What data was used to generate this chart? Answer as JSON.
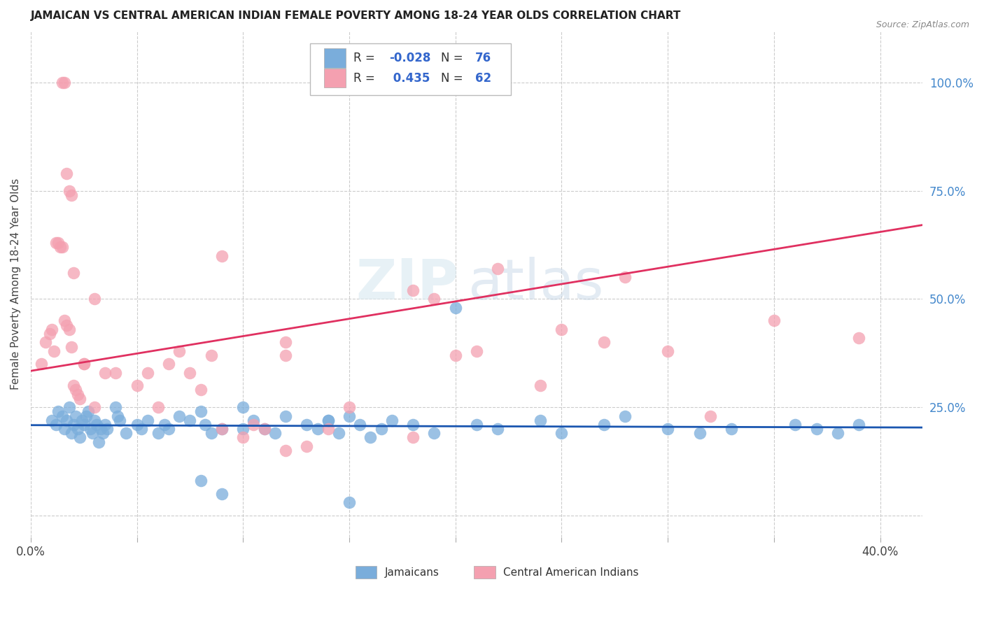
{
  "title": "JAMAICAN VS CENTRAL AMERICAN INDIAN FEMALE POVERTY AMONG 18-24 YEAR OLDS CORRELATION CHART",
  "source": "Source: ZipAtlas.com",
  "ylabel": "Female Poverty Among 18-24 Year Olds",
  "xlim": [
    0.0,
    0.42
  ],
  "ylim": [
    -0.05,
    1.12
  ],
  "xticks": [
    0.0,
    0.05,
    0.1,
    0.15,
    0.2,
    0.25,
    0.3,
    0.35,
    0.4
  ],
  "yticks_right": [
    0.0,
    0.25,
    0.5,
    0.75,
    1.0
  ],
  "yticklabels_right": [
    "",
    "25.0%",
    "50.0%",
    "75.0%",
    "100.0%"
  ],
  "grid_color": "#cccccc",
  "background_color": "#ffffff",
  "blue_color": "#7aaddb",
  "pink_color": "#f4a0b0",
  "blue_line_color": "#1a56b0",
  "pink_line_color": "#e03060",
  "blue_R": -0.028,
  "pink_R": 0.435,
  "blue_N": 76,
  "pink_N": 62,
  "watermark_zip": "ZIP",
  "watermark_atlas": "atlas",
  "blue_x": [
    0.01,
    0.012,
    0.013,
    0.015,
    0.016,
    0.017,
    0.018,
    0.019,
    0.02,
    0.021,
    0.022,
    0.023,
    0.024,
    0.025,
    0.026,
    0.027,
    0.028,
    0.029,
    0.03,
    0.031,
    0.032,
    0.033,
    0.034,
    0.035,
    0.036,
    0.04,
    0.041,
    0.042,
    0.045,
    0.05,
    0.052,
    0.055,
    0.06,
    0.063,
    0.065,
    0.07,
    0.075,
    0.08,
    0.082,
    0.085,
    0.09,
    0.1,
    0.105,
    0.11,
    0.115,
    0.12,
    0.13,
    0.135,
    0.14,
    0.145,
    0.15,
    0.155,
    0.16,
    0.165,
    0.17,
    0.18,
    0.19,
    0.2,
    0.22,
    0.24,
    0.25,
    0.27,
    0.28,
    0.3,
    0.315,
    0.33,
    0.36,
    0.37,
    0.38,
    0.39,
    0.1,
    0.21,
    0.14,
    0.08,
    0.09,
    0.15
  ],
  "blue_y": [
    0.22,
    0.21,
    0.24,
    0.23,
    0.2,
    0.22,
    0.25,
    0.19,
    0.21,
    0.23,
    0.2,
    0.18,
    0.22,
    0.21,
    0.23,
    0.24,
    0.2,
    0.19,
    0.22,
    0.21,
    0.17,
    0.2,
    0.19,
    0.21,
    0.2,
    0.25,
    0.23,
    0.22,
    0.19,
    0.21,
    0.2,
    0.22,
    0.19,
    0.21,
    0.2,
    0.23,
    0.22,
    0.24,
    0.21,
    0.19,
    0.2,
    0.25,
    0.22,
    0.2,
    0.19,
    0.23,
    0.21,
    0.2,
    0.22,
    0.19,
    0.23,
    0.21,
    0.18,
    0.2,
    0.22,
    0.21,
    0.19,
    0.48,
    0.2,
    0.22,
    0.19,
    0.21,
    0.23,
    0.2,
    0.19,
    0.2,
    0.21,
    0.2,
    0.19,
    0.21,
    0.2,
    0.21,
    0.22,
    0.08,
    0.05,
    0.03
  ],
  "pink_x": [
    0.005,
    0.007,
    0.009,
    0.01,
    0.011,
    0.012,
    0.013,
    0.014,
    0.015,
    0.016,
    0.017,
    0.018,
    0.019,
    0.02,
    0.021,
    0.022,
    0.023,
    0.025,
    0.03,
    0.035,
    0.04,
    0.05,
    0.055,
    0.06,
    0.065,
    0.07,
    0.075,
    0.08,
    0.085,
    0.09,
    0.1,
    0.105,
    0.11,
    0.12,
    0.13,
    0.14,
    0.15,
    0.18,
    0.19,
    0.2,
    0.21,
    0.22,
    0.24,
    0.25,
    0.27,
    0.28,
    0.3,
    0.32,
    0.35,
    0.39,
    0.015,
    0.016,
    0.017,
    0.018,
    0.019,
    0.02,
    0.025,
    0.03,
    0.09,
    0.12,
    0.12,
    0.18
  ],
  "pink_y": [
    0.35,
    0.4,
    0.42,
    0.43,
    0.38,
    0.63,
    0.63,
    0.62,
    0.62,
    0.45,
    0.44,
    0.43,
    0.39,
    0.3,
    0.29,
    0.28,
    0.27,
    0.35,
    0.5,
    0.33,
    0.33,
    0.3,
    0.33,
    0.25,
    0.35,
    0.38,
    0.33,
    0.29,
    0.37,
    0.2,
    0.18,
    0.21,
    0.2,
    0.15,
    0.16,
    0.2,
    0.25,
    0.52,
    0.5,
    0.37,
    0.38,
    0.57,
    0.3,
    0.43,
    0.4,
    0.55,
    0.38,
    0.23,
    0.45,
    0.41,
    1.0,
    1.0,
    0.79,
    0.75,
    0.74,
    0.56,
    0.35,
    0.25,
    0.6,
    0.37,
    0.4,
    0.18
  ]
}
